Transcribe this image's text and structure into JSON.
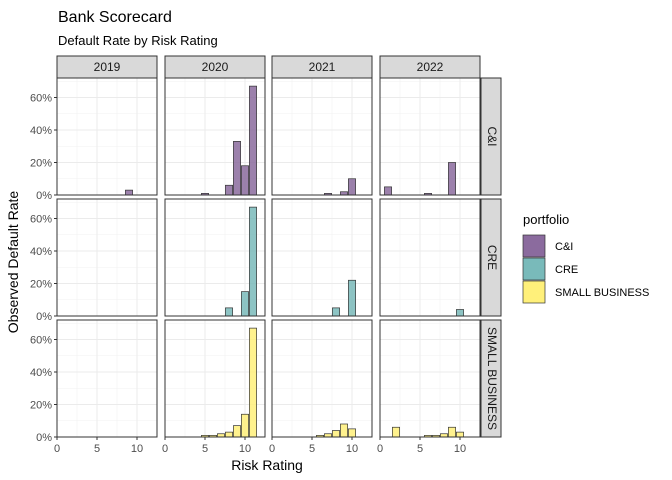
{
  "chart_data": {
    "type": "bar",
    "title": "Bank Scorecard",
    "subtitle": "Default Rate by Risk Rating",
    "xlabel": "Risk Rating",
    "ylabel": "Observed Default Rate",
    "xlim": [
      0,
      12.5
    ],
    "ylim": [
      0,
      0.72
    ],
    "x_ticks": [
      0,
      5,
      10
    ],
    "y_ticks": [
      0,
      0.2,
      0.4,
      0.6
    ],
    "y_tick_labels": [
      "0%",
      "20%",
      "40%",
      "60%"
    ],
    "columns": [
      "2019",
      "2020",
      "2021",
      "2022"
    ],
    "rows": [
      "C&I",
      "CRE",
      "SMALL BUSINESS"
    ],
    "grid": true,
    "legend_position": "right",
    "legend": {
      "title": "portfolio",
      "items": [
        {
          "label": "C&I",
          "color": "#8B6B9E"
        },
        {
          "label": "CRE",
          "color": "#79BABA"
        },
        {
          "label": "SMALL BUSINESS",
          "color": "#FFF07A"
        }
      ]
    },
    "x_values": [
      1,
      2,
      3,
      4,
      5,
      6,
      7,
      8,
      9,
      10,
      11
    ],
    "panels": [
      {
        "row": "C&I",
        "column": "2019",
        "values": [
          0,
          0,
          0,
          0,
          0,
          0,
          0,
          0,
          0.03,
          0,
          0
        ]
      },
      {
        "row": "C&I",
        "column": "2020",
        "values": [
          0,
          0,
          0,
          0,
          0.01,
          0,
          0,
          0.06,
          0.33,
          0.18,
          0.67
        ]
      },
      {
        "row": "C&I",
        "column": "2021",
        "values": [
          0,
          0,
          0,
          0,
          0,
          0,
          0.01,
          0,
          0.02,
          0.1,
          0
        ]
      },
      {
        "row": "C&I",
        "column": "2022",
        "values": [
          0.05,
          0,
          0,
          0,
          0,
          0.01,
          0,
          0,
          0.2,
          0,
          0
        ]
      },
      {
        "row": "CRE",
        "column": "2019",
        "values": [
          0,
          0,
          0,
          0,
          0,
          0,
          0,
          0,
          0,
          0,
          0
        ]
      },
      {
        "row": "CRE",
        "column": "2020",
        "values": [
          0,
          0,
          0,
          0,
          0,
          0,
          0,
          0.05,
          0,
          0.15,
          0.67
        ]
      },
      {
        "row": "CRE",
        "column": "2021",
        "values": [
          0,
          0,
          0,
          0,
          0,
          0,
          0,
          0.05,
          0,
          0.22,
          0
        ]
      },
      {
        "row": "CRE",
        "column": "2022",
        "values": [
          0,
          0,
          0,
          0,
          0,
          0,
          0,
          0,
          0,
          0.04,
          0
        ]
      },
      {
        "row": "SMALL BUSINESS",
        "column": "2019",
        "values": null
      },
      {
        "row": "SMALL BUSINESS",
        "column": "2020",
        "values": [
          0,
          0,
          0,
          0,
          0.01,
          0.01,
          0.02,
          0.03,
          0.07,
          0.14,
          0.67
        ]
      },
      {
        "row": "SMALL BUSINESS",
        "column": "2021",
        "values": [
          0,
          0,
          0,
          0,
          0,
          0.01,
          0.02,
          0.04,
          0.08,
          0.05,
          0
        ]
      },
      {
        "row": "SMALL BUSINESS",
        "column": "2022",
        "values": [
          0,
          0.06,
          0,
          0,
          0,
          0.01,
          0.01,
          0.02,
          0.06,
          0.03,
          0
        ]
      }
    ]
  }
}
